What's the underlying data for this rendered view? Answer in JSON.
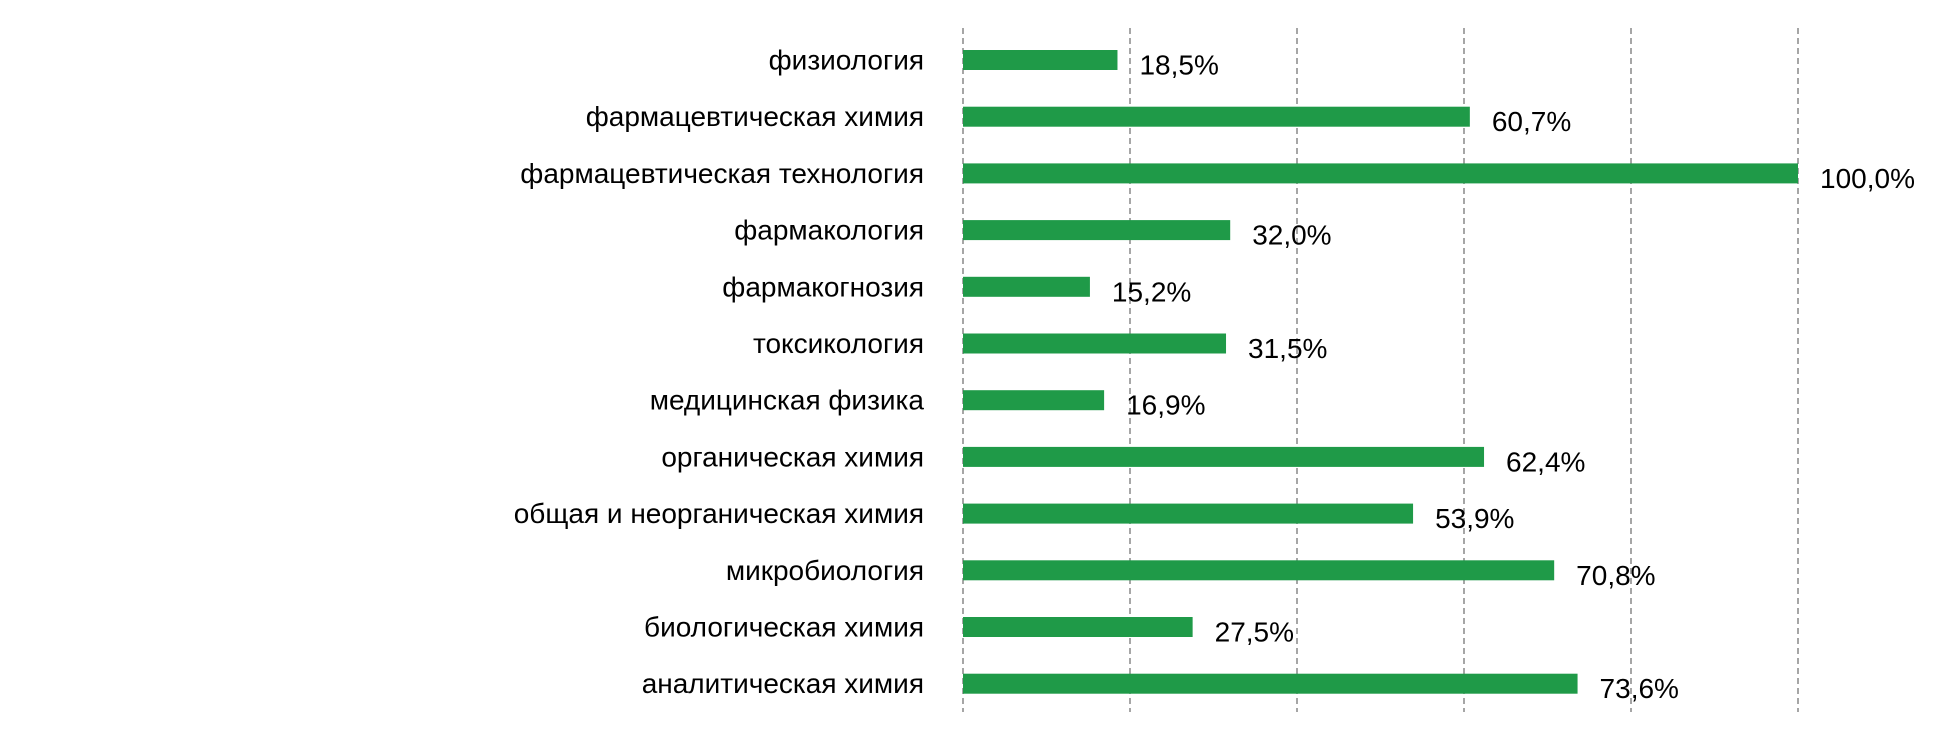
{
  "chart_data": {
    "type": "bar",
    "orientation": "horizontal",
    "categories": [
      "физиология",
      "фармацевтическая химия",
      "фармацевтическая технология",
      "фармакология",
      "фармакогнозия",
      "токсикология",
      "медицинская физика",
      "органическая химия",
      "общая и неорганическая химия",
      "микробиология",
      "биологическая химия",
      "аналитическая химия"
    ],
    "values": [
      18.5,
      60.7,
      100.0,
      32.0,
      15.2,
      31.5,
      16.9,
      62.4,
      53.9,
      70.8,
      27.5,
      73.6
    ],
    "value_labels": [
      "18,5%",
      "60,7%",
      "100,0%",
      "32,0%",
      "15,2%",
      "31,5%",
      "16,9%",
      "62,4%",
      "53,9%",
      "70,8%",
      "27,5%",
      "73,6%"
    ],
    "title": "",
    "xlabel": "",
    "ylabel": "",
    "xlim": [
      0,
      100
    ],
    "grid": true,
    "legend": "none",
    "bar_color": "#1f9a48"
  }
}
